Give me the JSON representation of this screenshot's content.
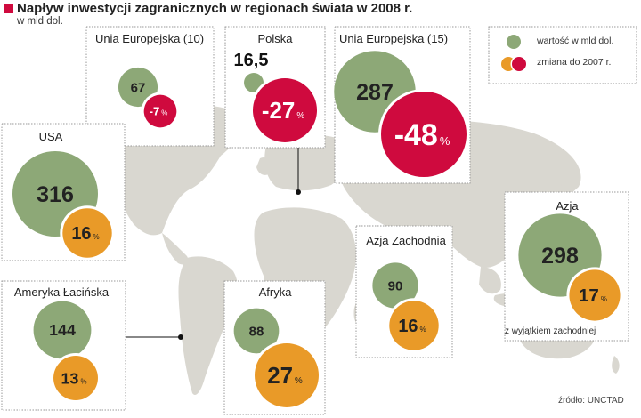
{
  "title": "Napływ inwestycji zagranicznych w regionach świata w 2008 r.",
  "subtitle": "w mld dol.",
  "source": "źródło: UNCTAD",
  "legend": {
    "value": "wartość w mld dol.",
    "change": "zmiana do 2007 r."
  },
  "colors": {
    "value": "#8da877",
    "increase": "#e99a28",
    "decrease": "#cf0a3e",
    "map": "#d9d7d0",
    "title_square": "#cf0a3e"
  },
  "chart_data": {
    "type": "bubble-map",
    "value_unit": "mld dol.",
    "change_unit": "%",
    "regions": [
      {
        "name": "Unia Europejska (10)",
        "value": "67",
        "change": "-7",
        "note": ""
      },
      {
        "name": "Polska",
        "value": "16,5",
        "change": "-27",
        "note": ""
      },
      {
        "name": "Unia Europejska (15)",
        "value": "287",
        "change": "-48",
        "note": ""
      },
      {
        "name": "USA",
        "value": "316",
        "change": "16",
        "note": ""
      },
      {
        "name": "Azja",
        "value": "298",
        "change": "17",
        "note": "z wyjątkiem zachodniej"
      },
      {
        "name": "Azja Zachodnia",
        "value": "90",
        "change": "16",
        "note": ""
      },
      {
        "name": "Ameryka Łacińska",
        "value": "144",
        "change": "13",
        "note": ""
      },
      {
        "name": "Afryka",
        "value": "88",
        "change": "27",
        "note": ""
      }
    ]
  }
}
